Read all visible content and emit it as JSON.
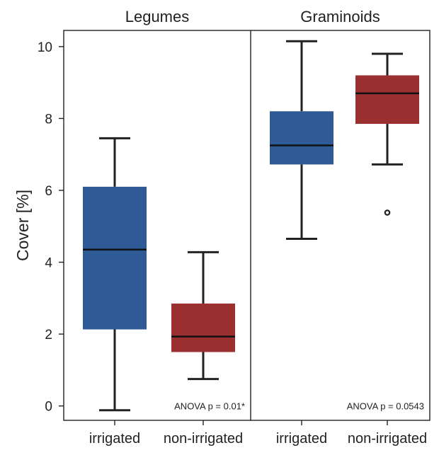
{
  "chart_data": {
    "type": "box",
    "ylabel": "Cover [%]",
    "ylim": [
      -0.4,
      10.45
    ],
    "yticks": [
      0,
      2,
      4,
      6,
      8,
      10
    ],
    "grid": false,
    "categories": [
      "irrigated",
      "non-irrigated"
    ],
    "colors": {
      "irrigated": "#2e5b95",
      "non-irrigated": "#9a3130"
    },
    "panels": [
      {
        "title": "Legumes",
        "annotation": "ANOVA p = 0.01*",
        "boxes": [
          {
            "category": "irrigated",
            "whisker_low": -0.12,
            "q1": 2.13,
            "median": 4.35,
            "q3": 6.1,
            "whisker_high": 7.45,
            "outliers": []
          },
          {
            "category": "non-irrigated",
            "whisker_low": 0.75,
            "q1": 1.5,
            "median": 1.93,
            "q3": 2.85,
            "whisker_high": 4.28,
            "outliers": []
          }
        ]
      },
      {
        "title": "Graminoids",
        "annotation": "ANOVA p = 0.0543",
        "boxes": [
          {
            "category": "irrigated",
            "whisker_low": 4.65,
            "q1": 6.72,
            "median": 7.25,
            "q3": 8.2,
            "whisker_high": 10.15,
            "outliers": []
          },
          {
            "category": "non-irrigated",
            "whisker_low": 6.72,
            "q1": 7.85,
            "median": 8.7,
            "q3": 9.2,
            "whisker_high": 9.8,
            "outliers": [
              5.38
            ]
          }
        ]
      }
    ]
  }
}
